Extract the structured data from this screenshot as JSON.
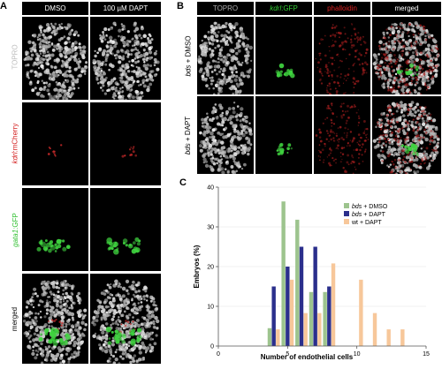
{
  "panel_a": {
    "letter": "A",
    "col_headers": [
      "DMSO",
      "100 µM DAPT"
    ],
    "rows": [
      {
        "label": "TOPRO",
        "color": "#bbbbbb",
        "kind": "topro"
      },
      {
        "label_italic": "kdrl",
        "label_rest": ":mCherry",
        "color": "#d42020",
        "kind": "red"
      },
      {
        "label_italic": "gata1",
        "label_rest": ":GFP",
        "color": "#30c030",
        "kind": "green"
      },
      {
        "label": "merged",
        "color": "#000000",
        "kind": "merged"
      }
    ]
  },
  "panel_b": {
    "letter": "B",
    "col_headers": [
      {
        "text": "TOPRO",
        "color": "#aaaaaa"
      },
      {
        "italic": "kdrl",
        "rest": ":GFP",
        "color": "#33cc33"
      },
      {
        "text": "phalloidin",
        "color": "#dd2222"
      },
      {
        "text": "merged",
        "color": "#ffffff"
      }
    ],
    "rows": [
      {
        "italic": "bds",
        "rest": " + DMSO"
      },
      {
        "italic": "bds",
        "rest": " + DAPT"
      }
    ]
  },
  "panel_c": {
    "letter": "C",
    "chart_data": {
      "type": "bar",
      "xlabel": "Number of endothelial cells",
      "ylabel": "Embryos (%)",
      "xlim": [
        0,
        15
      ],
      "ylim": [
        0,
        40
      ],
      "xticks": [
        0,
        5,
        10,
        15
      ],
      "yticks": [
        0,
        10,
        20,
        30,
        40
      ],
      "legend_position": "top-right",
      "series": [
        {
          "name_italic": "bds",
          "name_rest": " + DMSO",
          "color": "#9dc48e",
          "points": [
            [
              4,
              4.5
            ],
            [
              5,
              36.4
            ],
            [
              6,
              31.8
            ],
            [
              7,
              13.6
            ],
            [
              8,
              13.6
            ]
          ]
        },
        {
          "name_italic": "",
          "name_rest": "bds + DAPT",
          "color": "#2b2f8c",
          "points": [
            [
              4,
              15
            ],
            [
              5,
              20
            ],
            [
              6,
              25
            ],
            [
              7,
              25
            ],
            [
              8,
              15
            ]
          ]
        },
        {
          "name_italic": "",
          "name_rest": "wt + DAPT",
          "color": "#f7c79a",
          "points": [
            [
              4,
              4.2
            ],
            [
              5,
              16.7
            ],
            [
              6,
              8.3
            ],
            [
              7,
              8.3
            ],
            [
              8,
              20.8
            ],
            [
              10,
              16.7
            ],
            [
              11,
              8.3
            ],
            [
              12,
              4.2
            ],
            [
              13,
              4.2
            ]
          ]
        }
      ]
    }
  }
}
